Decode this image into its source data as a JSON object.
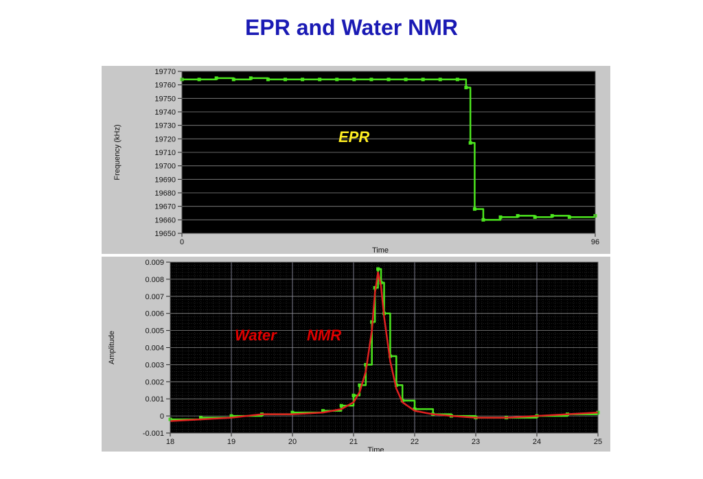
{
  "title": "EPR and Water NMR",
  "colors": {
    "title": "#1a1ab4",
    "plot_bg": "#000000",
    "panel_bg": "#c8c8c8",
    "trace": "#4ce61e",
    "fit": "#e02020",
    "epr_label": "#ffee22",
    "nmr_label": "#e00000"
  },
  "chart_data": [
    {
      "type": "line",
      "ylabel": "Frequency (kHz)",
      "xlabel": "Time",
      "annotation": "EPR",
      "xlim": [
        0,
        96
      ],
      "ylim": [
        19650,
        19770
      ],
      "xticks": [
        "0",
        "96"
      ],
      "yticks": [
        "19770",
        "19760",
        "19750",
        "19740",
        "19730",
        "19720",
        "19710",
        "19700",
        "19690",
        "19680",
        "19670",
        "19660",
        "19650"
      ],
      "grid": true,
      "series": [
        {
          "x": [
            0,
            4,
            8,
            12,
            16,
            20,
            24,
            28,
            32,
            36,
            40,
            44,
            48,
            52,
            56,
            60,
            64,
            66,
            67,
            68,
            70,
            74,
            78,
            82,
            86,
            90,
            96
          ],
          "y": [
            19764,
            19764,
            19765,
            19764,
            19765,
            19764,
            19764,
            19764,
            19764,
            19764,
            19764,
            19764,
            19764,
            19764,
            19764,
            19764,
            19764,
            19758,
            19717,
            19668,
            19660,
            19662,
            19663,
            19662,
            19663,
            19662,
            19663
          ]
        }
      ]
    },
    {
      "type": "line",
      "ylabel": "Amplitude",
      "xlabel": "Time",
      "annotation_left": "Water",
      "annotation_right": "NMR",
      "xlim": [
        18,
        25
      ],
      "ylim": [
        -0.001,
        0.009
      ],
      "xticks": [
        "18",
        "19",
        "20",
        "21",
        "22",
        "23",
        "24",
        "25"
      ],
      "yticks": [
        "0.009",
        "0.008",
        "0.007",
        "0.006",
        "0.005",
        "0.004",
        "0.003",
        "0.002",
        "0.001",
        "0",
        "-0.001"
      ],
      "grid": true,
      "series": [
        {
          "x": [
            18.0,
            18.5,
            19.0,
            19.5,
            20.0,
            20.5,
            20.8,
            21.0,
            21.1,
            21.2,
            21.3,
            21.35,
            21.4,
            21.45,
            21.5,
            21.6,
            21.7,
            21.8,
            22.0,
            22.3,
            22.6,
            23.0,
            23.5,
            24.0,
            24.5,
            25.0
          ],
          "y": [
            -0.0002,
            -0.0001,
            0.0,
            0.0001,
            0.0002,
            0.0003,
            0.0006,
            0.0012,
            0.0018,
            0.003,
            0.0055,
            0.0075,
            0.0086,
            0.0078,
            0.006,
            0.0035,
            0.0018,
            0.0009,
            0.0004,
            0.0001,
            0.0,
            -0.0001,
            -0.0001,
            0.0,
            0.0001,
            0.0002
          ]
        },
        {
          "x": [
            18.0,
            18.5,
            19.0,
            19.5,
            20.0,
            20.5,
            20.8,
            21.0,
            21.1,
            21.2,
            21.3,
            21.35,
            21.4,
            21.45,
            21.5,
            21.6,
            21.7,
            21.8,
            22.0,
            22.3,
            22.6,
            23.0,
            23.5,
            24.0,
            24.5,
            25.0
          ],
          "y": [
            -0.0003,
            -0.0002,
            -0.0001,
            0.0001,
            0.0001,
            0.0002,
            0.0004,
            0.0008,
            0.0014,
            0.0026,
            0.005,
            0.0072,
            0.0084,
            0.0076,
            0.0058,
            0.0032,
            0.0016,
            0.0008,
            0.0003,
            0.0001,
            0.0,
            -0.0001,
            -0.0001,
            0.0,
            0.0001,
            0.0002
          ]
        }
      ]
    }
  ]
}
